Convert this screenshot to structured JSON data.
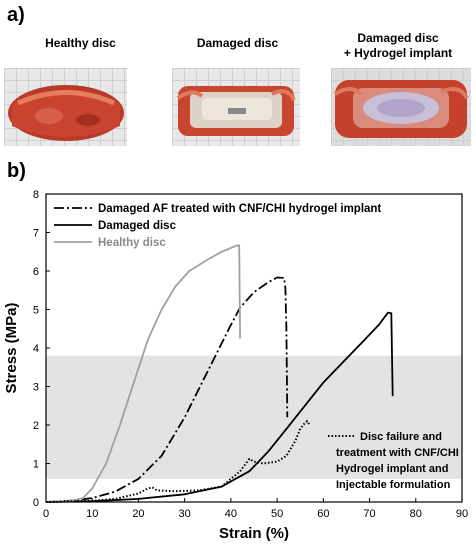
{
  "panel_a": {
    "label": "a)",
    "photos": [
      {
        "title": "Healthy disc"
      },
      {
        "title": "Damaged disc"
      },
      {
        "title_line1": "Damaged disc",
        "title_line2": "+ Hydrogel implant"
      }
    ]
  },
  "panel_b": {
    "label": "b)"
  },
  "chart_data": {
    "type": "line",
    "xlabel": "Strain (%)",
    "ylabel": "Stress (MPa)",
    "xlim": [
      0,
      90
    ],
    "ylim": [
      0,
      8
    ],
    "xticks": [
      "0",
      "10",
      "20",
      "30",
      "40",
      "50",
      "60",
      "70",
      "80",
      "90"
    ],
    "yticks": [
      "0",
      "1",
      "2",
      "3",
      "4",
      "5",
      "6",
      "7",
      "8"
    ],
    "shaded_band": {
      "y_from": 0.6,
      "y_to": 3.8,
      "color": "#e3e3e3"
    },
    "legend_position": "top-left",
    "series": [
      {
        "name": "Damaged AF treated with CNF/CHI hydrogel implant",
        "style": "dashdot",
        "color": "#000000",
        "points": [
          [
            0,
            0
          ],
          [
            5,
            0.03
          ],
          [
            10,
            0.1
          ],
          [
            15,
            0.27
          ],
          [
            20,
            0.6
          ],
          [
            25,
            1.2
          ],
          [
            30,
            2.2
          ],
          [
            35,
            3.4
          ],
          [
            40,
            4.6
          ],
          [
            42,
            5.05
          ],
          [
            45,
            5.45
          ],
          [
            48,
            5.7
          ],
          [
            50,
            5.83
          ],
          [
            51.5,
            5.82
          ],
          [
            51.8,
            5.55
          ],
          [
            52,
            4.5
          ],
          [
            52.2,
            2.2
          ]
        ]
      },
      {
        "name": "Damaged disc",
        "style": "solid",
        "color": "#000000",
        "points": [
          [
            0,
            0
          ],
          [
            10,
            0.02
          ],
          [
            20,
            0.08
          ],
          [
            30,
            0.2
          ],
          [
            38,
            0.4
          ],
          [
            44,
            0.8
          ],
          [
            48,
            1.3
          ],
          [
            52,
            1.9
          ],
          [
            56,
            2.5
          ],
          [
            60,
            3.1
          ],
          [
            64,
            3.6
          ],
          [
            68,
            4.1
          ],
          [
            72,
            4.6
          ],
          [
            74,
            4.92
          ],
          [
            74.7,
            4.9
          ],
          [
            75,
            2.75
          ]
        ]
      },
      {
        "name": "Healthy disc",
        "style": "solid",
        "color": "#a0a0a0",
        "points": [
          [
            0,
            0
          ],
          [
            5,
            0.02
          ],
          [
            8,
            0.1
          ],
          [
            10,
            0.35
          ],
          [
            13,
            1.0
          ],
          [
            16,
            2.0
          ],
          [
            19,
            3.1
          ],
          [
            22,
            4.2
          ],
          [
            25,
            5.0
          ],
          [
            28,
            5.6
          ],
          [
            31,
            6.0
          ],
          [
            35,
            6.3
          ],
          [
            38,
            6.5
          ],
          [
            41,
            6.65
          ],
          [
            41.8,
            6.67
          ],
          [
            42,
            4.25
          ]
        ]
      },
      {
        "name": "Disc failure and treatment with CNF/CHI Hydrogel implant and Injectable formulation",
        "style": "dotted",
        "color": "#000000",
        "points": [
          [
            0,
            0
          ],
          [
            10,
            0.03
          ],
          [
            15,
            0.08
          ],
          [
            20,
            0.22
          ],
          [
            22,
            0.35
          ],
          [
            23,
            0.38
          ],
          [
            24,
            0.3
          ],
          [
            28,
            0.28
          ],
          [
            33,
            0.3
          ],
          [
            38,
            0.4
          ],
          [
            42,
            0.8
          ],
          [
            44,
            1.12
          ],
          [
            45,
            1.05
          ],
          [
            47,
            1.0
          ],
          [
            50,
            1.05
          ],
          [
            52,
            1.2
          ],
          [
            54,
            1.6
          ],
          [
            55,
            1.9
          ],
          [
            56,
            2.05
          ],
          [
            56.5,
            2.1
          ],
          [
            57,
            2.0
          ]
        ]
      }
    ],
    "annotation_lines": [
      "Disc failure and",
      "treatment with CNF/CHI",
      "Hydrogel implant and",
      "Injectable formulation"
    ]
  }
}
